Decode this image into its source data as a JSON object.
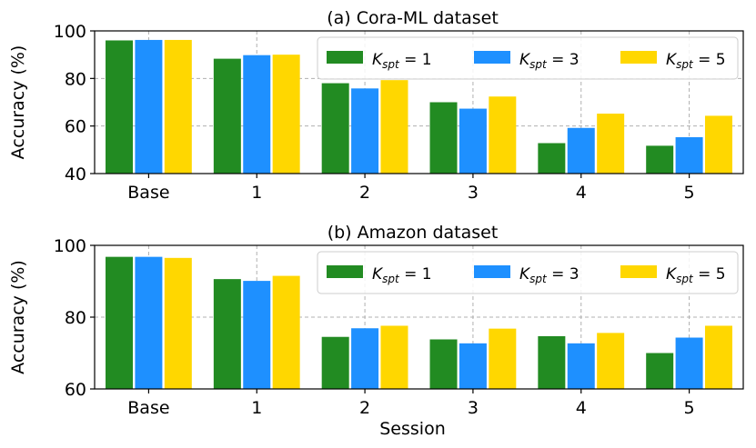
{
  "chart_data": [
    {
      "type": "bar",
      "title": "(a) Cora-ML dataset",
      "xlabel": "",
      "ylabel": "Accuracy (%)",
      "ylim": [
        40,
        100
      ],
      "yticks": [
        40,
        60,
        80,
        100
      ],
      "grid": true,
      "legend_position": "top-right",
      "categories": [
        "Base",
        "1",
        "2",
        "3",
        "4",
        "5"
      ],
      "series": [
        {
          "name": "K_spt = 1",
          "color": "#228B22",
          "values": [
            96.0,
            88.3,
            78.0,
            70.0,
            52.8,
            51.7
          ]
        },
        {
          "name": "K_spt = 3",
          "color": "#1E90FF",
          "values": [
            96.2,
            89.8,
            75.8,
            67.3,
            59.2,
            55.3
          ]
        },
        {
          "name": "K_spt = 5",
          "color": "#FFD700",
          "values": [
            96.2,
            90.0,
            79.3,
            72.4,
            65.2,
            64.3
          ]
        }
      ]
    },
    {
      "type": "bar",
      "title": "(b) Amazon dataset",
      "xlabel": "Session",
      "ylabel": "Accuracy (%)",
      "ylim": [
        60,
        100
      ],
      "yticks": [
        60,
        80,
        100
      ],
      "grid": true,
      "legend_position": "top-right",
      "categories": [
        "Base",
        "1",
        "2",
        "3",
        "4",
        "5"
      ],
      "series": [
        {
          "name": "K_spt = 1",
          "color": "#228B22",
          "values": [
            96.8,
            90.6,
            74.5,
            73.8,
            74.7,
            70.0
          ]
        },
        {
          "name": "K_spt = 3",
          "color": "#1E90FF",
          "values": [
            96.8,
            90.1,
            76.9,
            72.7,
            72.7,
            74.3
          ]
        },
        {
          "name": "K_spt = 5",
          "color": "#FFD700",
          "values": [
            96.5,
            91.5,
            77.6,
            76.8,
            75.6,
            77.6
          ]
        }
      ]
    }
  ]
}
